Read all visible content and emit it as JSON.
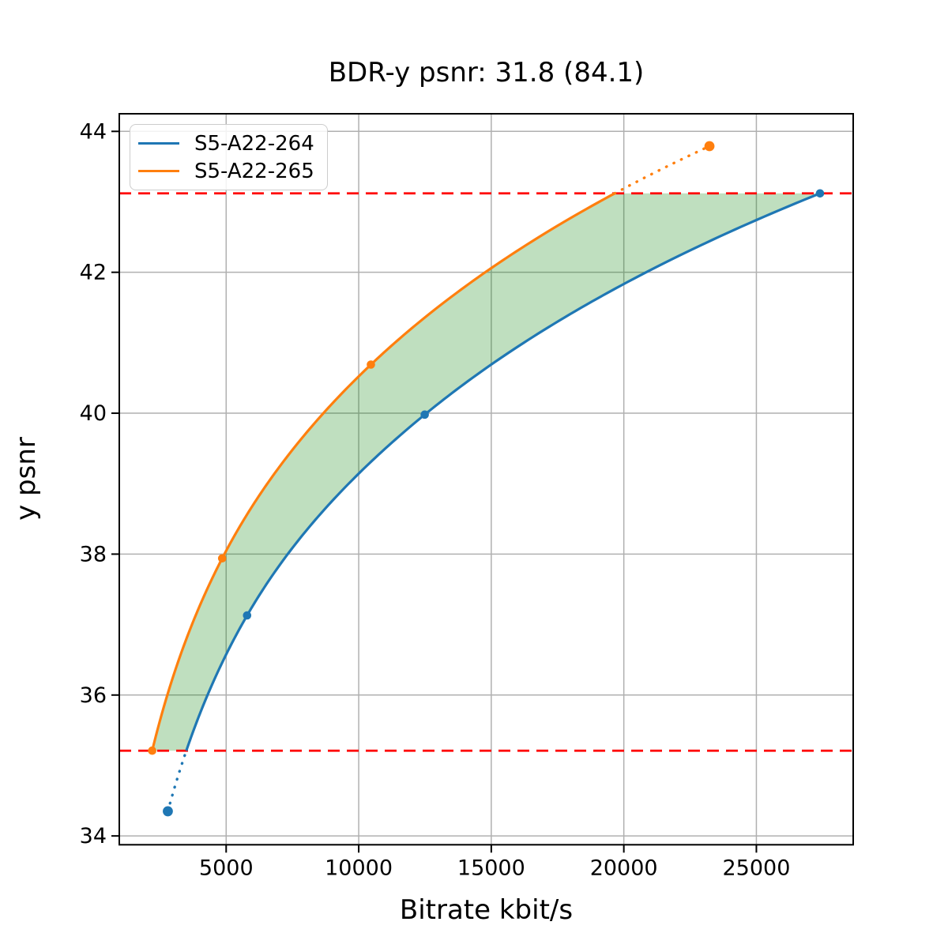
{
  "chart_data": {
    "type": "line",
    "title": "BDR-y psnr: 31.8 (84.1)",
    "xlabel": "Bitrate kbit/s",
    "ylabel": "y psnr",
    "xlim": [
      969,
      28652
    ],
    "ylim": [
      33.875,
      44.25
    ],
    "xticks": [
      5000,
      10000,
      15000,
      20000,
      25000
    ],
    "yticks": [
      34,
      36,
      38,
      40,
      42,
      44
    ],
    "grid": true,
    "grid_color": "#b0b0b0",
    "legend_position": "upper left",
    "series": [
      {
        "name": "S5-A22-264",
        "color": "#1f77b4",
        "x": [
          2800,
          5790,
          12490,
          27400
        ],
        "y": [
          34.35,
          37.13,
          39.98,
          43.12
        ],
        "dotted_segment": "start"
      },
      {
        "name": "S5-A22-265",
        "color": "#ff7f0e",
        "x": [
          2210,
          4850,
          10460,
          23230
        ],
        "y": [
          35.21,
          37.94,
          40.69,
          43.79
        ],
        "dotted_segment": "end"
      }
    ],
    "overlap_lines": {
      "lower": 35.21,
      "upper": 43.12,
      "color": "#ff0000",
      "style": "dashed"
    },
    "fill_between": {
      "color": "#008000",
      "opacity": 0.25
    }
  }
}
